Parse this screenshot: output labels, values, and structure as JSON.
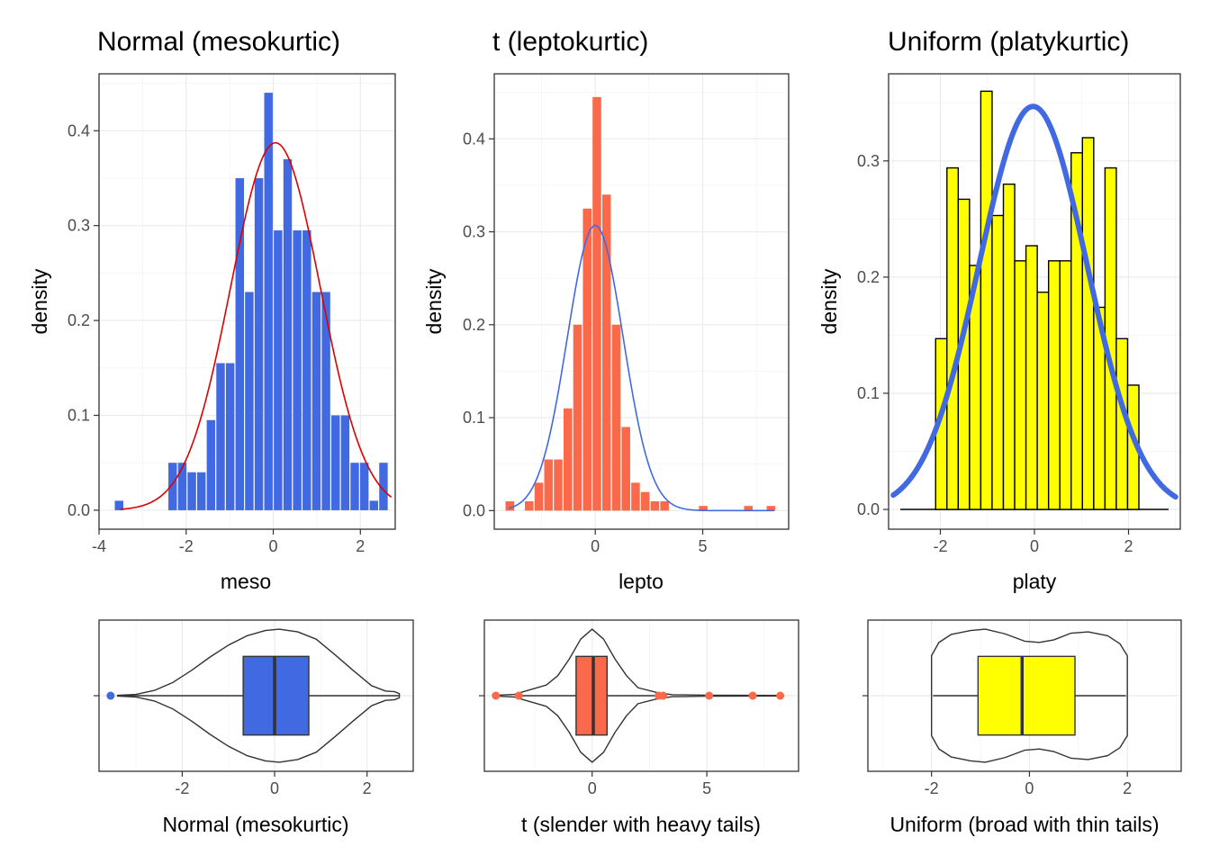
{
  "chart_data": [
    {
      "type": "histogram",
      "panel": "top-left",
      "title": "Normal (mesokurtic)",
      "xlabel": "meso",
      "ylabel": "density",
      "xlim": [
        -4,
        2.8
      ],
      "ylim": [
        -0.02,
        0.46
      ],
      "xticks": [
        -4,
        -2,
        0,
        2
      ],
      "xtick_labels": [
        "-4",
        "-2",
        "0",
        "2"
      ],
      "yticks": [
        0.0,
        0.1,
        0.2,
        0.3,
        0.4
      ],
      "ytick_labels": [
        "0.0",
        "0.1",
        "0.2",
        "0.3",
        "0.4"
      ],
      "bins": [
        {
          "x0": -3.65,
          "x1": -3.43,
          "y": 0.01
        },
        {
          "x0": -2.42,
          "x1": -2.2,
          "y": 0.05
        },
        {
          "x0": -2.2,
          "x1": -1.98,
          "y": 0.05
        },
        {
          "x0": -1.98,
          "x1": -1.76,
          "y": 0.04
        },
        {
          "x0": -1.76,
          "x1": -1.54,
          "y": 0.04
        },
        {
          "x0": -1.54,
          "x1": -1.32,
          "y": 0.095
        },
        {
          "x0": -1.32,
          "x1": -1.1,
          "y": 0.155
        },
        {
          "x0": -1.1,
          "x1": -0.88,
          "y": 0.155
        },
        {
          "x0": -0.88,
          "x1": -0.66,
          "y": 0.35
        },
        {
          "x0": -0.66,
          "x1": -0.44,
          "y": 0.23
        },
        {
          "x0": -0.44,
          "x1": -0.22,
          "y": 0.35
        },
        {
          "x0": -0.22,
          "x1": 0.0,
          "y": 0.44
        },
        {
          "x0": 0.0,
          "x1": 0.22,
          "y": 0.295
        },
        {
          "x0": 0.22,
          "x1": 0.44,
          "y": 0.37
        },
        {
          "x0": 0.44,
          "x1": 0.66,
          "y": 0.295
        },
        {
          "x0": 0.66,
          "x1": 0.88,
          "y": 0.295
        },
        {
          "x0": 0.88,
          "x1": 1.1,
          "y": 0.23
        },
        {
          "x0": 1.1,
          "x1": 1.32,
          "y": 0.23
        },
        {
          "x0": 1.32,
          "x1": 1.54,
          "y": 0.1
        },
        {
          "x0": 1.54,
          "x1": 1.76,
          "y": 0.1
        },
        {
          "x0": 1.76,
          "x1": 1.98,
          "y": 0.05
        },
        {
          "x0": 1.98,
          "x1": 2.2,
          "y": 0.05
        },
        {
          "x0": 2.2,
          "x1": 2.42,
          "y": 0.01
        },
        {
          "x0": 2.42,
          "x1": 2.64,
          "y": 0.05
        }
      ],
      "bar_color": "#4169e1",
      "bar_outline": "",
      "curve": {
        "kind": "normal",
        "mean": 0.05,
        "sd": 1.03,
        "from": -3.5,
        "to": 2.7,
        "color": "#dd0000",
        "width": 1.6
      }
    },
    {
      "type": "histogram",
      "panel": "top-middle",
      "title": "t (leptokurtic)",
      "xlabel": "lepto",
      "ylabel": "density",
      "xlim": [
        -4.7,
        9.0
      ],
      "ylim": [
        -0.02,
        0.47
      ],
      "xticks": [
        0,
        5
      ],
      "xtick_labels": [
        "0",
        "5"
      ],
      "yticks": [
        0.0,
        0.1,
        0.2,
        0.3,
        0.4
      ],
      "ytick_labels": [
        "0.0",
        "0.1",
        "0.2",
        "0.3",
        "0.4"
      ],
      "bins": [
        {
          "x0": -4.2,
          "x1": -3.75,
          "y": 0.01
        },
        {
          "x0": -3.3,
          "x1": -2.85,
          "y": 0.01
        },
        {
          "x0": -2.85,
          "x1": -2.4,
          "y": 0.03
        },
        {
          "x0": -2.4,
          "x1": -1.95,
          "y": 0.055
        },
        {
          "x0": -1.95,
          "x1": -1.5,
          "y": 0.055
        },
        {
          "x0": -1.5,
          "x1": -1.05,
          "y": 0.11
        },
        {
          "x0": -1.05,
          "x1": -0.6,
          "y": 0.2
        },
        {
          "x0": -0.6,
          "x1": -0.15,
          "y": 0.325
        },
        {
          "x0": -0.15,
          "x1": 0.3,
          "y": 0.445
        },
        {
          "x0": 0.3,
          "x1": 0.75,
          "y": 0.34
        },
        {
          "x0": 0.75,
          "x1": 1.2,
          "y": 0.2
        },
        {
          "x0": 1.2,
          "x1": 1.65,
          "y": 0.09
        },
        {
          "x0": 1.65,
          "x1": 2.1,
          "y": 0.03
        },
        {
          "x0": 2.1,
          "x1": 2.55,
          "y": 0.02
        },
        {
          "x0": 2.55,
          "x1": 3.0,
          "y": 0.01
        },
        {
          "x0": 3.0,
          "x1": 3.45,
          "y": 0.01
        },
        {
          "x0": 4.8,
          "x1": 5.25,
          "y": 0.005
        },
        {
          "x0": 6.9,
          "x1": 7.35,
          "y": 0.005
        },
        {
          "x0": 7.95,
          "x1": 8.4,
          "y": 0.005
        }
      ],
      "bar_color": "#fa6a4a",
      "bar_outline": "",
      "curve": {
        "kind": "normal",
        "mean": 0.0,
        "sd": 1.3,
        "from": -4.0,
        "to": 8.3,
        "color": "#4169e1",
        "width": 1.6
      }
    },
    {
      "type": "histogram",
      "panel": "top-right",
      "title": "Uniform (platykurtic)",
      "xlabel": "platy",
      "ylabel": "density",
      "xlim": [
        -3.1,
        3.1
      ],
      "ylim": [
        -0.017,
        0.375
      ],
      "xticks": [
        -2,
        0,
        2
      ],
      "xtick_labels": [
        "-2",
        "0",
        "2"
      ],
      "yticks": [
        0.0,
        0.1,
        0.2,
        0.3
      ],
      "ytick_labels": [
        "0.0",
        "0.1",
        "0.2",
        "0.3"
      ],
      "bins": [
        {
          "x0": -2.1,
          "x1": -1.86,
          "y": 0.147
        },
        {
          "x0": -1.86,
          "x1": -1.62,
          "y": 0.294
        },
        {
          "x0": -1.62,
          "x1": -1.38,
          "y": 0.267
        },
        {
          "x0": -1.38,
          "x1": -1.14,
          "y": 0.21
        },
        {
          "x0": -1.14,
          "x1": -0.9,
          "y": 0.36
        },
        {
          "x0": -0.9,
          "x1": -0.66,
          "y": 0.253
        },
        {
          "x0": -0.66,
          "x1": -0.42,
          "y": 0.28
        },
        {
          "x0": -0.42,
          "x1": -0.18,
          "y": 0.214
        },
        {
          "x0": -0.18,
          "x1": 0.06,
          "y": 0.227
        },
        {
          "x0": 0.06,
          "x1": 0.3,
          "y": 0.187
        },
        {
          "x0": 0.3,
          "x1": 0.54,
          "y": 0.214
        },
        {
          "x0": 0.54,
          "x1": 0.78,
          "y": 0.214
        },
        {
          "x0": 0.78,
          "x1": 1.02,
          "y": 0.307
        },
        {
          "x0": 1.02,
          "x1": 1.26,
          "y": 0.32
        },
        {
          "x0": 1.26,
          "x1": 1.5,
          "y": 0.174
        },
        {
          "x0": 1.5,
          "x1": 1.74,
          "y": 0.294
        },
        {
          "x0": 1.74,
          "x1": 1.98,
          "y": 0.147
        },
        {
          "x0": 1.98,
          "x1": 2.22,
          "y": 0.107
        }
      ],
      "bar_color": "#ffff00",
      "bar_outline": "#000000",
      "baseline": {
        "from": -2.85,
        "to": 2.85,
        "color": "#000000"
      },
      "curve": {
        "kind": "normal",
        "mean": -0.03,
        "sd": 1.15,
        "from": -3.0,
        "to": 3.0,
        "color": "#4169e1",
        "width": 6
      }
    },
    {
      "type": "violin-box",
      "panel": "bottom-left",
      "xlabel": "Normal (mesokurtic)",
      "xlim": [
        -3.8,
        3.0
      ],
      "xticks": [
        -2,
        0,
        2
      ],
      "xtick_labels": [
        "-2",
        "0",
        "2"
      ],
      "box": {
        "min": -3.4,
        "q1": -0.68,
        "median": 0.0,
        "q3": 0.74,
        "max": 2.7,
        "fill": "#4169e1"
      },
      "outliers": [
        -3.55
      ],
      "outlier_color": "#4169e1",
      "violin": [
        [
          -3.4,
          0.005
        ],
        [
          -3.0,
          0.02
        ],
        [
          -2.6,
          0.08
        ],
        [
          -2.2,
          0.2
        ],
        [
          -1.8,
          0.38
        ],
        [
          -1.4,
          0.58
        ],
        [
          -1.0,
          0.76
        ],
        [
          -0.6,
          0.9
        ],
        [
          -0.2,
          0.98
        ],
        [
          0.1,
          1.0
        ],
        [
          0.5,
          0.96
        ],
        [
          0.9,
          0.85
        ],
        [
          1.3,
          0.62
        ],
        [
          1.7,
          0.38
        ],
        [
          2.1,
          0.15
        ],
        [
          2.4,
          0.07
        ],
        [
          2.6,
          0.06
        ],
        [
          2.7,
          0.03
        ]
      ]
    },
    {
      "type": "violin-box",
      "panel": "bottom-middle",
      "xlabel": "t (slender with heavy tails)",
      "xlim": [
        -4.7,
        9.0
      ],
      "xticks": [
        0,
        5
      ],
      "xtick_labels": [
        "0",
        "5"
      ],
      "box": {
        "min": -3.1,
        "q1": -0.7,
        "median": 0.05,
        "q3": 0.65,
        "max": 2.8,
        "fill": "#fa6a4a"
      },
      "outliers": [
        -4.2,
        -3.2,
        2.9,
        3.1,
        5.1,
        7.0,
        8.2
      ],
      "outlier_color": "#fa6a4a",
      "violin": [
        [
          -4.3,
          0.004
        ],
        [
          -3.4,
          0.02
        ],
        [
          -2.8,
          0.08
        ],
        [
          -2.0,
          0.16
        ],
        [
          -1.5,
          0.3
        ],
        [
          -1.0,
          0.55
        ],
        [
          -0.5,
          0.85
        ],
        [
          0.0,
          1.0
        ],
        [
          0.5,
          0.85
        ],
        [
          1.0,
          0.55
        ],
        [
          1.5,
          0.3
        ],
        [
          2.0,
          0.12
        ],
        [
          2.8,
          0.05
        ],
        [
          3.5,
          0.015
        ],
        [
          5.0,
          0.008
        ],
        [
          7.0,
          0.006
        ],
        [
          8.3,
          0.004
        ]
      ]
    },
    {
      "type": "violin-box",
      "panel": "bottom-right",
      "xlabel": "Uniform (broad with thin tails)",
      "xlim": [
        -3.3,
        3.1
      ],
      "xticks": [
        -2,
        0,
        2
      ],
      "xtick_labels": [
        "-2",
        "0",
        "2"
      ],
      "box": {
        "min": -1.97,
        "q1": -1.05,
        "median": -0.15,
        "q3": 0.93,
        "max": 1.97,
        "fill": "#ffff00"
      },
      "outliers": [],
      "outlier_color": "#000000",
      "violin": [
        [
          -2.0,
          0.6
        ],
        [
          -1.85,
          0.8
        ],
        [
          -1.6,
          0.92
        ],
        [
          -1.2,
          0.98
        ],
        [
          -0.9,
          1.0
        ],
        [
          -0.5,
          0.93
        ],
        [
          -0.1,
          0.82
        ],
        [
          0.2,
          0.8
        ],
        [
          0.5,
          0.84
        ],
        [
          0.85,
          0.94
        ],
        [
          1.2,
          0.96
        ],
        [
          1.6,
          0.9
        ],
        [
          1.85,
          0.78
        ],
        [
          2.0,
          0.6
        ]
      ]
    }
  ]
}
